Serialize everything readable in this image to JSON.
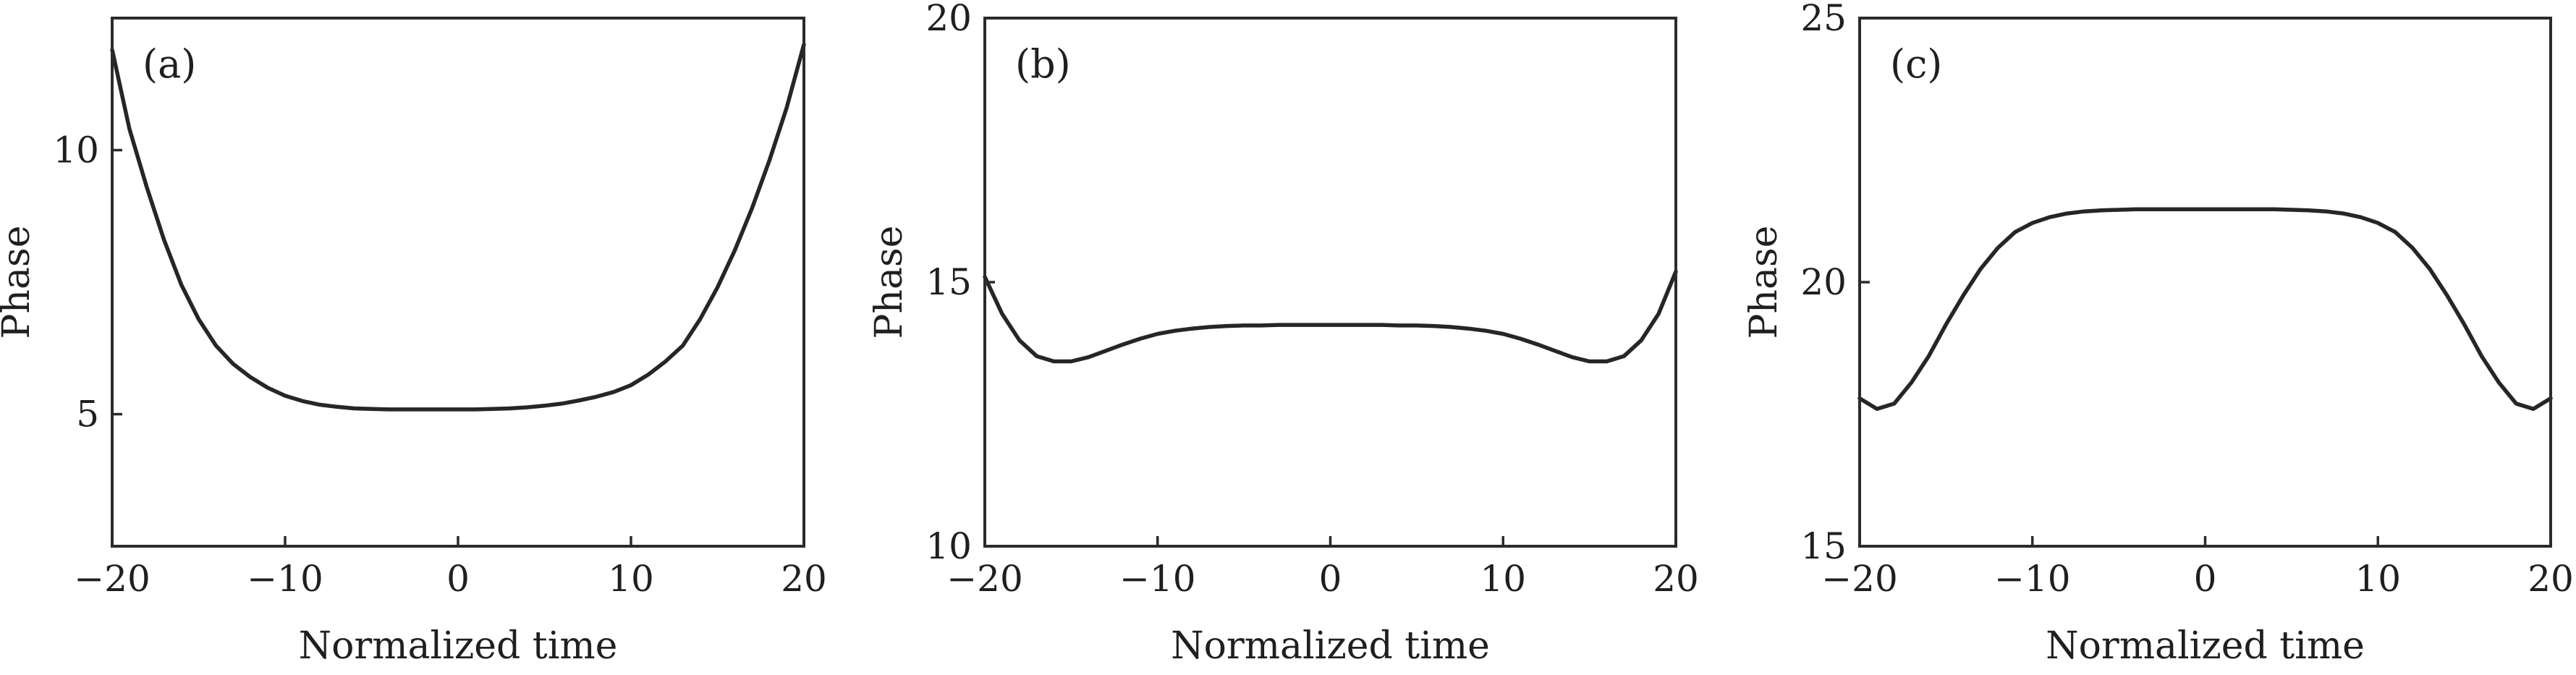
{
  "chart_data": [
    {
      "type": "line",
      "panel_label": "(a)",
      "xlabel": "Normalized time",
      "ylabel": "Phase",
      "xlim": [
        -20,
        20
      ],
      "ylim": [
        2.5,
        12.5
      ],
      "xticks": [
        -20,
        -10,
        0,
        10,
        20
      ],
      "xtick_labels": [
        "−20",
        "−10",
        "0",
        "10",
        "20"
      ],
      "yticks": [
        5,
        10
      ],
      "ytick_labels": [
        "5",
        "10"
      ],
      "grid": false,
      "series": [
        {
          "x": [
            -20,
            -19,
            -18,
            -17,
            -16,
            -15,
            -14,
            -13,
            -12,
            -11,
            -10,
            -9,
            -8,
            -7,
            -6,
            -5,
            -4,
            -3,
            -2,
            -1,
            0,
            1,
            2,
            3,
            4,
            5,
            6,
            7,
            8,
            9,
            10,
            11,
            12,
            13,
            14,
            15,
            16,
            17,
            18,
            19,
            20
          ],
          "y": [
            11.9,
            10.4,
            9.3,
            8.3,
            7.45,
            6.8,
            6.3,
            5.95,
            5.7,
            5.5,
            5.35,
            5.25,
            5.18,
            5.14,
            5.11,
            5.1,
            5.09,
            5.09,
            5.09,
            5.09,
            5.09,
            5.09,
            5.1,
            5.11,
            5.13,
            5.16,
            5.2,
            5.26,
            5.33,
            5.42,
            5.55,
            5.75,
            6.0,
            6.3,
            6.8,
            7.4,
            8.1,
            8.9,
            9.8,
            10.8,
            12.0
          ]
        }
      ]
    },
    {
      "type": "line",
      "panel_label": "(b)",
      "xlabel": "Normalized time",
      "ylabel": "Phase",
      "xlim": [
        -20,
        20
      ],
      "ylim": [
        10,
        20
      ],
      "xticks": [
        -20,
        -10,
        0,
        10,
        20
      ],
      "xtick_labels": [
        "−20",
        "−10",
        "0",
        "10",
        "20"
      ],
      "yticks": [
        10,
        15,
        20
      ],
      "ytick_labels": [
        "10",
        "15",
        "20"
      ],
      "grid": false,
      "series": [
        {
          "x": [
            -20,
            -19,
            -18,
            -17,
            -16,
            -15,
            -14,
            -13,
            -12,
            -11,
            -10,
            -9,
            -8,
            -7,
            -6,
            -5,
            -4,
            -3,
            -2,
            -1,
            0,
            1,
            2,
            3,
            4,
            5,
            6,
            7,
            8,
            9,
            10,
            11,
            12,
            13,
            14,
            15,
            16,
            17,
            18,
            19,
            20
          ],
          "y": [
            15.1,
            14.4,
            13.9,
            13.6,
            13.5,
            13.5,
            13.58,
            13.7,
            13.82,
            13.93,
            14.02,
            14.08,
            14.12,
            14.15,
            14.17,
            14.18,
            14.18,
            14.19,
            14.19,
            14.19,
            14.19,
            14.19,
            14.19,
            14.19,
            14.18,
            14.18,
            14.17,
            14.15,
            14.12,
            14.08,
            14.02,
            13.93,
            13.82,
            13.7,
            13.58,
            13.5,
            13.5,
            13.6,
            13.9,
            14.4,
            15.2
          ]
        }
      ]
    },
    {
      "type": "line",
      "panel_label": "(c)",
      "xlabel": "Normalized time",
      "ylabel": "Phase",
      "xlim": [
        -20,
        20
      ],
      "ylim": [
        15,
        25
      ],
      "xticks": [
        -20,
        -10,
        0,
        10,
        20
      ],
      "xtick_labels": [
        "−20",
        "−10",
        "0",
        "10",
        "20"
      ],
      "yticks": [
        15,
        20,
        25
      ],
      "ytick_labels": [
        "15",
        "20",
        "25"
      ],
      "grid": false,
      "series": [
        {
          "x": [
            -20,
            -19,
            -18,
            -17,
            -16,
            -15,
            -14,
            -13,
            -12,
            -11,
            -10,
            -9,
            -8,
            -7,
            -6,
            -5,
            -4,
            -3,
            -2,
            -1,
            0,
            1,
            2,
            3,
            4,
            5,
            6,
            7,
            8,
            9,
            10,
            11,
            12,
            13,
            14,
            15,
            16,
            17,
            18,
            19,
            20
          ],
          "y": [
            17.8,
            17.6,
            17.7,
            18.1,
            18.6,
            19.2,
            19.75,
            20.25,
            20.65,
            20.95,
            21.12,
            21.23,
            21.3,
            21.34,
            21.36,
            21.37,
            21.38,
            21.38,
            21.38,
            21.38,
            21.38,
            21.38,
            21.38,
            21.38,
            21.38,
            21.37,
            21.36,
            21.34,
            21.3,
            21.23,
            21.12,
            20.95,
            20.65,
            20.25,
            19.75,
            19.2,
            18.6,
            18.1,
            17.7,
            17.6,
            17.8
          ]
        }
      ]
    }
  ]
}
